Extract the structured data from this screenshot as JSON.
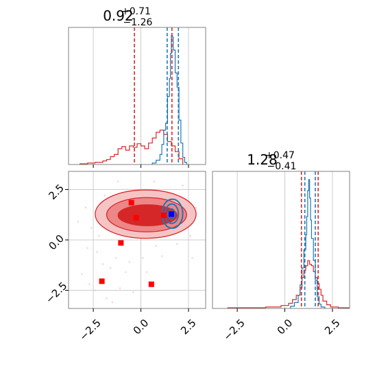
{
  "colors": {
    "primary": "#d62728",
    "secondary": "#1f77b4",
    "marker_red": "#ff0000",
    "marker_blue": "#0000ff",
    "grid": "#cccccc",
    "frame": "#808080"
  },
  "chart_data": [
    {
      "type": "histogram",
      "panel": "top-left",
      "title": {
        "value": "0.92",
        "plus": "+0.71",
        "minus": "−1.26"
      },
      "xlim": [
        -3.8,
        3.4
      ],
      "grid": true,
      "series": [
        {
          "color": "#d62728",
          "bin_edges": [
            -3.2,
            -3.0,
            -2.8,
            -2.6,
            -2.4,
            -2.2,
            -2.0,
            -1.8,
            -1.6,
            -1.4,
            -1.2,
            -1.0,
            -0.8,
            -0.6,
            -0.4,
            -0.2,
            0.0,
            0.2,
            0.4,
            0.6,
            0.8,
            1.0,
            1.2,
            1.4,
            1.6,
            1.8,
            2.0,
            2.2
          ],
          "counts": [
            1,
            1,
            2,
            2,
            3,
            3,
            5,
            7,
            11,
            14,
            22,
            25,
            20,
            26,
            24,
            29,
            26,
            22,
            30,
            37,
            45,
            48,
            42,
            32,
            26,
            18,
            8
          ]
        },
        {
          "color": "#1f77b4",
          "bin_edges": [
            0.6,
            0.8,
            1.0,
            1.1,
            1.2,
            1.3,
            1.4,
            1.5,
            1.55,
            1.6,
            1.65,
            1.7,
            1.8,
            1.9,
            2.0,
            2.1,
            2.2,
            2.3,
            2.4
          ],
          "counts": [
            2,
            6,
            14,
            28,
            48,
            58,
            95,
            120,
            155,
            180,
            178,
            160,
            128,
            108,
            62,
            30,
            10,
            3
          ]
        }
      ],
      "vlines": [
        {
          "x": -0.34,
          "color": "#d62728"
        },
        {
          "x": 1.63,
          "color": "#d62728"
        },
        {
          "x": 1.38,
          "color": "#1f77b4"
        },
        {
          "x": 1.97,
          "color": "#1f77b4"
        }
      ]
    },
    {
      "type": "contour",
      "panel": "bottom-left",
      "xlim": [
        -3.8,
        3.4
      ],
      "ylim": [
        -3.4,
        3.4
      ],
      "grid": true,
      "x_ticks": [
        -2.5,
        0.0,
        2.5
      ],
      "x_tick_labels": [
        "−2.5",
        "0.0",
        "2.5"
      ],
      "y_ticks": [
        -2.5,
        0.0,
        2.5
      ],
      "y_tick_labels": [
        "−2.5",
        "0.0",
        "2.5"
      ],
      "red_contours": [
        {
          "cx": 0.25,
          "cy": 1.28,
          "rx": 2.65,
          "ry": 1.2,
          "fill": "#f6c4c5"
        },
        {
          "cx": 0.3,
          "cy": 1.25,
          "rx": 2.1,
          "ry": 0.85,
          "fill": "#ec8687"
        },
        {
          "cx": 0.35,
          "cy": 1.22,
          "rx": 1.55,
          "ry": 0.52,
          "fill": "#d62728"
        }
      ],
      "blue_contours": [
        {
          "cx": 1.65,
          "cy": 1.3,
          "rx": 0.55,
          "ry": 0.72
        },
        {
          "cx": 1.62,
          "cy": 1.3,
          "rx": 0.35,
          "ry": 0.48
        },
        {
          "cx": 1.6,
          "cy": 1.28,
          "rx": 0.18,
          "ry": 0.26
        }
      ],
      "markers": [
        {
          "x": -0.5,
          "y": 1.85,
          "color": "#ff0000"
        },
        {
          "x": -0.25,
          "y": 1.1,
          "color": "#ff0000"
        },
        {
          "x": 1.2,
          "y": 1.22,
          "color": "#ff0000"
        },
        {
          "x": -1.05,
          "y": -0.15,
          "color": "#ff0000"
        },
        {
          "x": -2.05,
          "y": -2.05,
          "color": "#ff0000"
        },
        {
          "x": 0.55,
          "y": -2.2,
          "color": "#ff0000"
        },
        {
          "x": 1.6,
          "y": 1.28,
          "color": "#0000ff"
        }
      ],
      "scatter_points": [
        [
          -2.9,
          1.6
        ],
        [
          -2.6,
          0.6
        ],
        [
          -2.3,
          -0.6
        ],
        [
          -3.1,
          -1.7
        ],
        [
          -2.4,
          -2.5
        ],
        [
          -1.8,
          -2.9
        ],
        [
          -1.6,
          -1.4
        ],
        [
          -1.3,
          -0.9
        ],
        [
          -0.8,
          -1.6
        ],
        [
          -0.4,
          -2.6
        ],
        [
          0.1,
          -0.9
        ],
        [
          0.8,
          -0.3
        ],
        [
          1.9,
          -0.2
        ],
        [
          2.6,
          0.2
        ],
        [
          2.9,
          1.6
        ],
        [
          2.2,
          2.7
        ],
        [
          -1.9,
          2.2
        ],
        [
          -1.2,
          2.9
        ],
        [
          0.7,
          2.9
        ],
        [
          -2.7,
          -2.2
        ],
        [
          -2.0,
          -1.2
        ],
        [
          -1.5,
          -3.1
        ],
        [
          -1.1,
          -2.4
        ],
        [
          -0.6,
          -1.1
        ],
        [
          0.3,
          -1.6
        ],
        [
          1.1,
          -0.8
        ],
        [
          -2.2,
          0.2
        ],
        [
          -1.7,
          0.7
        ],
        [
          -0.9,
          0.4
        ],
        [
          2.7,
          -0.9
        ],
        [
          -3.3,
          0.9
        ],
        [
          -2.8,
          -0.4
        ]
      ]
    },
    {
      "type": "histogram",
      "panel": "bottom-right",
      "title": {
        "value": "1.28",
        "plus": "+0.47",
        "minus": "−0.41"
      },
      "xlim": [
        -3.8,
        3.4
      ],
      "grid": true,
      "x_ticks": [
        -2.5,
        0.0,
        2.5
      ],
      "x_tick_labels": [
        "−2.5",
        "0.0",
        "2.5"
      ],
      "series": [
        {
          "color": "#d62728",
          "bin_edges": [
            -3.0,
            -2.0,
            -1.0,
            -0.2,
            0.2,
            0.4,
            0.6,
            0.8,
            0.9,
            1.0,
            1.1,
            1.2,
            1.3,
            1.4,
            1.5,
            1.6,
            1.7,
            1.8,
            1.9,
            2.0,
            2.2,
            2.4,
            2.8,
            3.4
          ],
          "counts": [
            1,
            1,
            2,
            4,
            7,
            12,
            18,
            28,
            42,
            52,
            58,
            65,
            60,
            58,
            50,
            42,
            34,
            26,
            18,
            10,
            5,
            2,
            1
          ]
        },
        {
          "color": "#1f77b4",
          "bin_edges": [
            0.3,
            0.5,
            0.7,
            0.8,
            0.9,
            1.0,
            1.1,
            1.15,
            1.2,
            1.25,
            1.3,
            1.35,
            1.4,
            1.5,
            1.6,
            1.7,
            1.8,
            1.9,
            2.1
          ],
          "counts": [
            3,
            8,
            18,
            32,
            55,
            80,
            100,
            125,
            160,
            175,
            150,
            120,
            95,
            65,
            38,
            16,
            6,
            2
          ]
        }
      ],
      "vlines": [
        {
          "x": 0.87,
          "color": "#d62728"
        },
        {
          "x": 1.75,
          "color": "#d62728"
        },
        {
          "x": 1.05,
          "color": "#1f77b4"
        },
        {
          "x": 1.6,
          "color": "#1f77b4"
        }
      ]
    }
  ]
}
